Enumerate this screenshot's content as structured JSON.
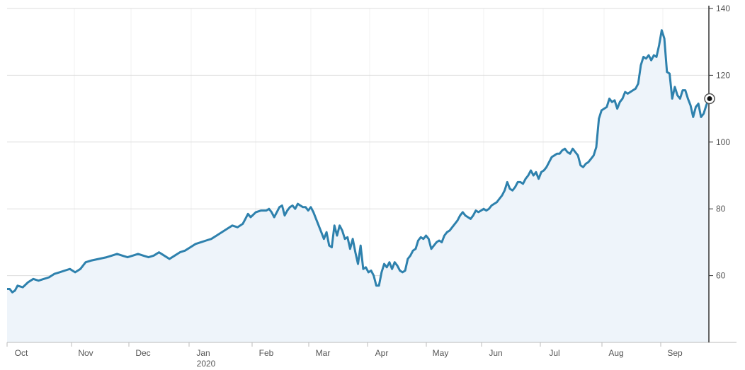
{
  "chart_data": {
    "type": "area",
    "title": "",
    "xlabel": "",
    "ylabel": "",
    "x_ticks": [
      "Oct",
      "Nov",
      "Dec",
      "Jan",
      "Feb",
      "Mar",
      "Apr",
      "May",
      "Jun",
      "Jul",
      "Aug",
      "Sep"
    ],
    "x_sublabel": "2020",
    "y_ticks": [
      60,
      80,
      100,
      120,
      140
    ],
    "ylim": [
      40,
      140
    ],
    "y_axis_position": "right",
    "grid": true,
    "colors": {
      "line": "#2e81ad",
      "fill": "#eef4fa",
      "grid": "#dddddd",
      "axis": "#333333"
    },
    "series": [
      {
        "values": [
          [
            0,
            56
          ],
          [
            1,
            56
          ],
          [
            2,
            55
          ],
          [
            3,
            55.5
          ],
          [
            4,
            57
          ],
          [
            6,
            56.5
          ],
          [
            8,
            58
          ],
          [
            10,
            59
          ],
          [
            12,
            58.5
          ],
          [
            14,
            59
          ],
          [
            16,
            59.5
          ],
          [
            18,
            60.5
          ],
          [
            20,
            61
          ],
          [
            22,
            61.5
          ],
          [
            24,
            62
          ],
          [
            26,
            61
          ],
          [
            28,
            62
          ],
          [
            30,
            64
          ],
          [
            32,
            64.5
          ],
          [
            35,
            65
          ],
          [
            38,
            65.5
          ],
          [
            40,
            66
          ],
          [
            42,
            66.5
          ],
          [
            44,
            66
          ],
          [
            46,
            65.5
          ],
          [
            48,
            66
          ],
          [
            50,
            66.5
          ],
          [
            52,
            66
          ],
          [
            54,
            65.5
          ],
          [
            56,
            66
          ],
          [
            58,
            67
          ],
          [
            60,
            66
          ],
          [
            62,
            65
          ],
          [
            64,
            66
          ],
          [
            66,
            67
          ],
          [
            68,
            67.5
          ],
          [
            70,
            68.5
          ],
          [
            72,
            69.5
          ],
          [
            74,
            70
          ],
          [
            76,
            70.5
          ],
          [
            78,
            71
          ],
          [
            80,
            72
          ],
          [
            82,
            73
          ],
          [
            84,
            74
          ],
          [
            86,
            75
          ],
          [
            88,
            74.5
          ],
          [
            90,
            75.5
          ],
          [
            91,
            77
          ],
          [
            92,
            78.5
          ],
          [
            93,
            77.5
          ],
          [
            95,
            79
          ],
          [
            97,
            79.5
          ],
          [
            99,
            79.5
          ],
          [
            100,
            80
          ],
          [
            101,
            79
          ],
          [
            102,
            77.5
          ],
          [
            103,
            79
          ],
          [
            104,
            80.5
          ],
          [
            105,
            81
          ],
          [
            106,
            78
          ],
          [
            107,
            79.5
          ],
          [
            108,
            80.5
          ],
          [
            109,
            81
          ],
          [
            110,
            80
          ],
          [
            111,
            81.5
          ],
          [
            112,
            81
          ],
          [
            113,
            80.5
          ],
          [
            114,
            80.5
          ],
          [
            115,
            79.5
          ],
          [
            116,
            80.5
          ],
          [
            117,
            79
          ],
          [
            118,
            77
          ],
          [
            119,
            75
          ],
          [
            120,
            73
          ],
          [
            121,
            71
          ],
          [
            122,
            73
          ],
          [
            123,
            69
          ],
          [
            124,
            68.5
          ],
          [
            125,
            75
          ],
          [
            126,
            72
          ],
          [
            127,
            75
          ],
          [
            128,
            73.5
          ],
          [
            129,
            71
          ],
          [
            130,
            71.5
          ],
          [
            131,
            68
          ],
          [
            132,
            71
          ],
          [
            133,
            67
          ],
          [
            134,
            63.5
          ],
          [
            135,
            69
          ],
          [
            136,
            62
          ],
          [
            137,
            62.5
          ],
          [
            138,
            61
          ],
          [
            139,
            61.5
          ],
          [
            140,
            60
          ],
          [
            141,
            57
          ],
          [
            142,
            57
          ],
          [
            143,
            61
          ],
          [
            144,
            63.5
          ],
          [
            145,
            62.5
          ],
          [
            146,
            64
          ],
          [
            147,
            62
          ],
          [
            148,
            64
          ],
          [
            149,
            63
          ],
          [
            150,
            61.5
          ],
          [
            151,
            61
          ],
          [
            152,
            61.5
          ],
          [
            153,
            65
          ],
          [
            154,
            66
          ],
          [
            155,
            67.5
          ],
          [
            156,
            68
          ],
          [
            157,
            70.5
          ],
          [
            158,
            71.5
          ],
          [
            159,
            71
          ],
          [
            160,
            72
          ],
          [
            161,
            71
          ],
          [
            162,
            68
          ],
          [
            163,
            69
          ],
          [
            164,
            70
          ],
          [
            165,
            70.5
          ],
          [
            166,
            70
          ],
          [
            167,
            72
          ],
          [
            168,
            73
          ],
          [
            169,
            73.5
          ],
          [
            170,
            74.5
          ],
          [
            171,
            75.5
          ],
          [
            172,
            76.5
          ],
          [
            173,
            78
          ],
          [
            174,
            79
          ],
          [
            175,
            78
          ],
          [
            176,
            77.5
          ],
          [
            177,
            77
          ],
          [
            178,
            78
          ],
          [
            179,
            79.5
          ],
          [
            180,
            79
          ],
          [
            181,
            79.5
          ],
          [
            182,
            80
          ],
          [
            183,
            79.5
          ],
          [
            184,
            80
          ],
          [
            185,
            81
          ],
          [
            186,
            81.5
          ],
          [
            187,
            82
          ],
          [
            188,
            83
          ],
          [
            189,
            84
          ],
          [
            190,
            85.5
          ],
          [
            191,
            88
          ],
          [
            192,
            86
          ],
          [
            193,
            85.5
          ],
          [
            194,
            86.5
          ],
          [
            195,
            88
          ],
          [
            196,
            88
          ],
          [
            197,
            87.5
          ],
          [
            198,
            89
          ],
          [
            199,
            90
          ],
          [
            200,
            91.5
          ],
          [
            201,
            90
          ],
          [
            202,
            91
          ],
          [
            203,
            89
          ],
          [
            204,
            91
          ],
          [
            205,
            91.5
          ],
          [
            206,
            92.5
          ],
          [
            207,
            94
          ],
          [
            208,
            95.5
          ],
          [
            209,
            96
          ],
          [
            210,
            96.5
          ],
          [
            211,
            96.5
          ],
          [
            212,
            97.5
          ],
          [
            213,
            98
          ],
          [
            214,
            97
          ],
          [
            215,
            96.5
          ],
          [
            216,
            98
          ],
          [
            217,
            97
          ],
          [
            218,
            96
          ],
          [
            219,
            93
          ],
          [
            220,
            92.5
          ],
          [
            221,
            93.5
          ],
          [
            222,
            94
          ],
          [
            223,
            95
          ],
          [
            224,
            96
          ],
          [
            225,
            98.5
          ],
          [
            226,
            107
          ],
          [
            227,
            109.5
          ],
          [
            228,
            110
          ],
          [
            229,
            110.5
          ],
          [
            230,
            113
          ],
          [
            231,
            112
          ],
          [
            232,
            112.5
          ],
          [
            233,
            110
          ],
          [
            234,
            112
          ],
          [
            235,
            113
          ],
          [
            236,
            115
          ],
          [
            237,
            114.5
          ],
          [
            238,
            115
          ],
          [
            239,
            115.5
          ],
          [
            240,
            116
          ],
          [
            241,
            117.5
          ],
          [
            242,
            123
          ],
          [
            243,
            125.5
          ],
          [
            244,
            125
          ],
          [
            245,
            126
          ],
          [
            246,
            124.5
          ],
          [
            247,
            126
          ],
          [
            248,
            125.5
          ],
          [
            249,
            129
          ],
          [
            250,
            133.5
          ],
          [
            251,
            131
          ],
          [
            252,
            121
          ],
          [
            253,
            120.5
          ],
          [
            254,
            113
          ],
          [
            255,
            116.5
          ],
          [
            256,
            114
          ],
          [
            257,
            113
          ],
          [
            258,
            115.5
          ],
          [
            259,
            115.5
          ],
          [
            260,
            113
          ],
          [
            261,
            111
          ],
          [
            262,
            107.5
          ],
          [
            263,
            110.5
          ],
          [
            264,
            111.5
          ],
          [
            265,
            107.5
          ],
          [
            266,
            108.5
          ],
          [
            267,
            111
          ],
          [
            268,
            113
          ]
        ],
        "last_value": 113
      }
    ]
  }
}
